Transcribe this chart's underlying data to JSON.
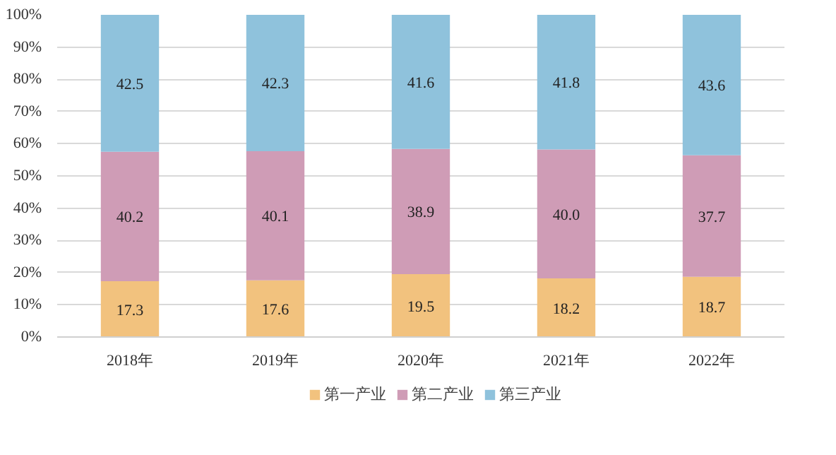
{
  "chart_data": {
    "type": "bar",
    "stacked": true,
    "categories": [
      "2018年",
      "2019年",
      "2020年",
      "2021年",
      "2022年"
    ],
    "series": [
      {
        "name": "第一产业",
        "color": "#f2c27e",
        "values": [
          17.3,
          17.6,
          19.5,
          18.2,
          18.7
        ]
      },
      {
        "name": "第二产业",
        "color": "#cf9cb6",
        "values": [
          40.2,
          40.1,
          38.9,
          40.0,
          37.7
        ],
        "value_labels": [
          "40.2",
          "40.1",
          "38.9",
          "40.0",
          "37.7"
        ]
      },
      {
        "name": "第三产业",
        "color": "#8fc2dc",
        "values": [
          42.5,
          42.3,
          41.6,
          41.8,
          43.6
        ]
      }
    ],
    "ylim": [
      0,
      100
    ],
    "yticks": [
      {
        "value": 0,
        "label": "0%"
      },
      {
        "value": 10,
        "label": "10%"
      },
      {
        "value": 20,
        "label": "20%"
      },
      {
        "value": 30,
        "label": "30%"
      },
      {
        "value": 40,
        "label": "40%"
      },
      {
        "value": 50,
        "label": "50%"
      },
      {
        "value": 60,
        "label": "60%"
      },
      {
        "value": 70,
        "label": "70%"
      },
      {
        "value": 80,
        "label": "80%"
      },
      {
        "value": 90,
        "label": "90%"
      },
      {
        "value": 100,
        "label": "100%"
      }
    ],
    "grid": "y",
    "legend": "bottom",
    "data_labels": true
  }
}
